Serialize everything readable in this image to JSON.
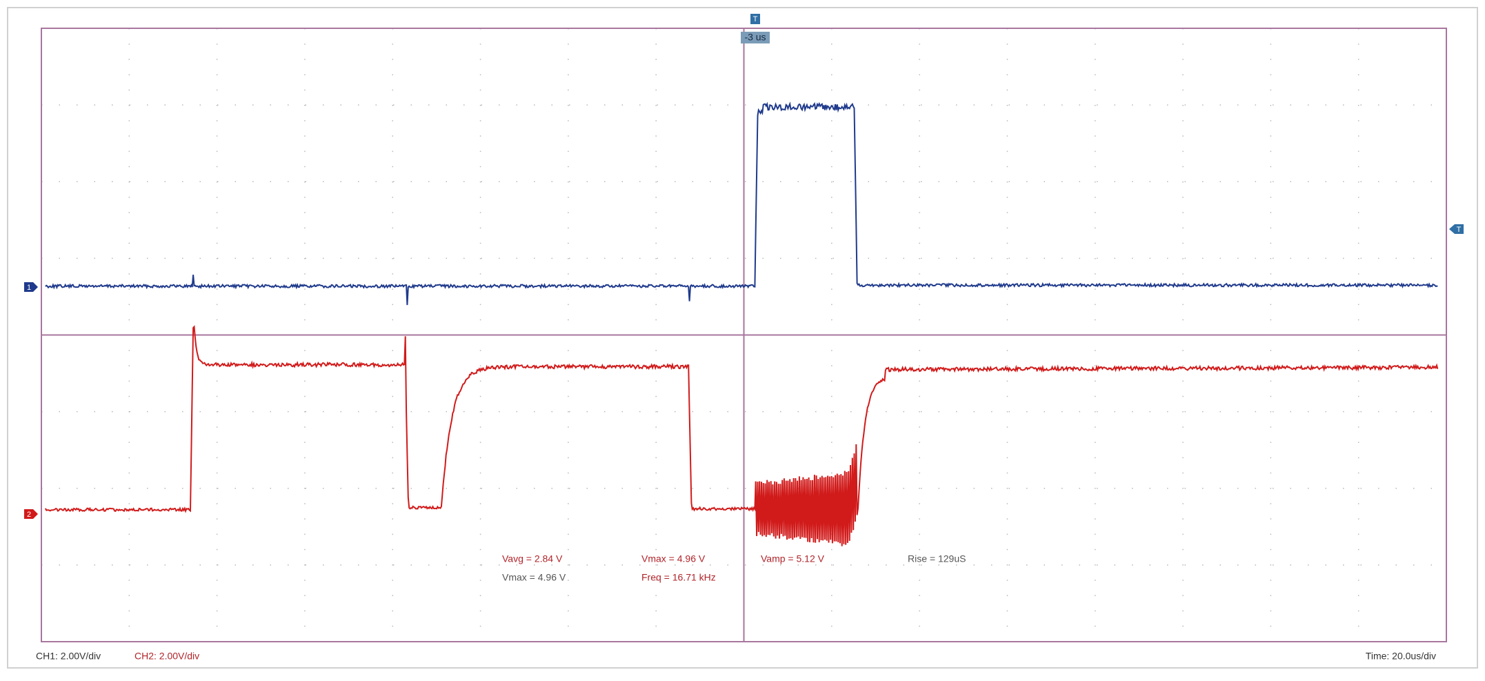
{
  "trigger": {
    "marker": "T",
    "offset": "-3 us",
    "level_marker": "T"
  },
  "channels": [
    {
      "marker": "1"
    },
    {
      "marker": "2"
    }
  ],
  "measurements": [
    {
      "text": "Vavg = 2.84 V"
    },
    {
      "text": "Vmax = 4.96 V"
    },
    {
      "text": "Vmax = 4.96 V"
    },
    {
      "text": "Freq = 16.71 kHz"
    },
    {
      "text": "Vamp = 5.12 V"
    },
    {
      "text": "Rise = 129uS"
    }
  ],
  "status": {
    "ch1": "CH1: 2.00V/div",
    "ch2": "CH2: 2.00V/div",
    "time": "Time: 20.0us/div"
  }
}
